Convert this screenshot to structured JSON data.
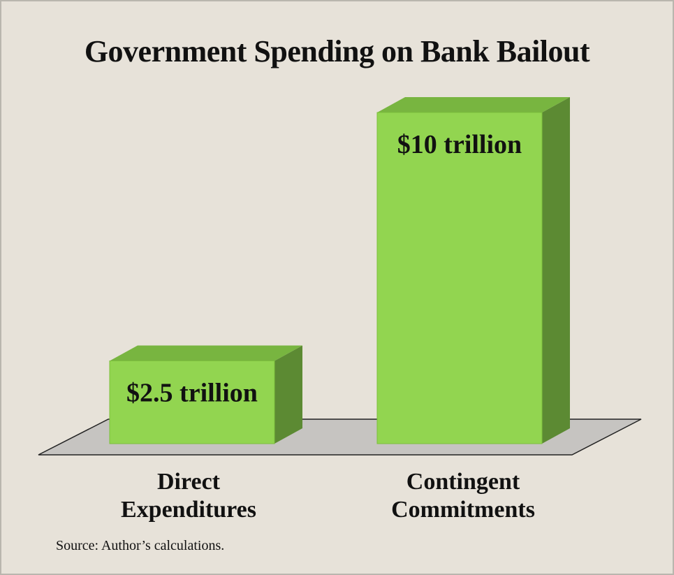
{
  "chart_data": {
    "type": "bar",
    "title": "Government Spending on Bank Bailout",
    "categories": [
      [
        "Direct",
        "Expenditures"
      ],
      [
        "Contingent",
        "Commitments"
      ]
    ],
    "values": [
      2.5,
      10
    ],
    "value_labels": [
      "$2.5 trillion",
      "$10 trillion"
    ],
    "units": "trillion dollars",
    "style": "3d",
    "grid": false,
    "legend": "none",
    "colors": {
      "bar_front": "#92d550",
      "bar_top": "#78b540",
      "bar_side": "#5c8a33",
      "floor": "#c6c4c1"
    }
  },
  "footer": {
    "source": "Source: Author’s calculations."
  }
}
